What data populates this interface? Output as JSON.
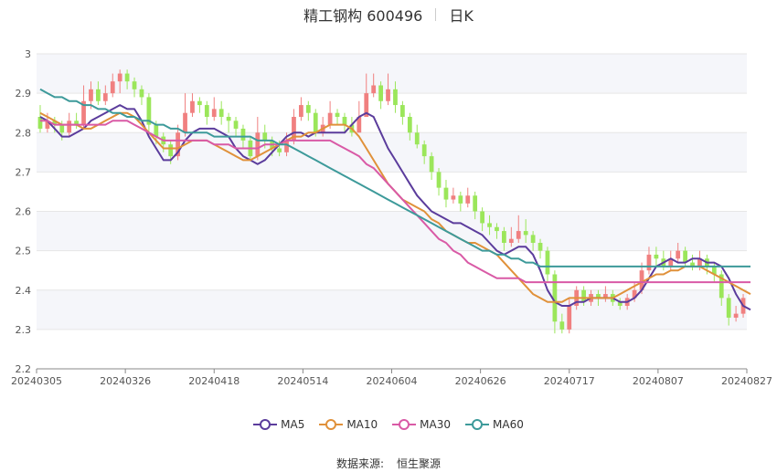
{
  "header": {
    "stock_name": "精工钢构 600496",
    "period": "日K"
  },
  "legend": [
    {
      "name": "MA5",
      "color": "#5b3c9c"
    },
    {
      "name": "MA10",
      "color": "#e0913a"
    },
    {
      "name": "MA30",
      "color": "#d95aa6"
    },
    {
      "name": "MA60",
      "color": "#3d9a9a"
    }
  ],
  "source": {
    "label": "数据来源:",
    "value": "恒生聚源"
  },
  "colors": {
    "up": "#f08080",
    "down": "#9be65a",
    "grid": "#e6e6e6",
    "band": "#f5f6fa"
  },
  "chart_data": {
    "type": "candlestick",
    "ylim": [
      2.2,
      3.0
    ],
    "yticks": [
      2.2,
      2.3,
      2.4,
      2.5,
      2.6,
      2.7,
      2.8,
      2.9,
      3.0
    ],
    "xticks": [
      "20240305",
      "20240326",
      "20240418",
      "20240514",
      "20240604",
      "20240626",
      "20240717",
      "20240807",
      "20240827"
    ],
    "candles": [
      [
        2.84,
        2.81,
        2.87,
        2.8
      ],
      [
        2.81,
        2.83,
        2.85,
        2.8
      ],
      [
        2.83,
        2.82,
        2.84,
        2.8
      ],
      [
        2.82,
        2.8,
        2.83,
        2.78
      ],
      [
        2.8,
        2.83,
        2.85,
        2.79
      ],
      [
        2.83,
        2.82,
        2.85,
        2.81
      ],
      [
        2.82,
        2.88,
        2.92,
        2.81
      ],
      [
        2.88,
        2.91,
        2.93,
        2.86
      ],
      [
        2.91,
        2.88,
        2.93,
        2.87
      ],
      [
        2.88,
        2.9,
        2.92,
        2.87
      ],
      [
        2.9,
        2.93,
        2.95,
        2.89
      ],
      [
        2.93,
        2.95,
        2.96,
        2.9
      ],
      [
        2.95,
        2.93,
        2.96,
        2.91
      ],
      [
        2.93,
        2.91,
        2.94,
        2.89
      ],
      [
        2.91,
        2.89,
        2.92,
        2.87
      ],
      [
        2.89,
        2.82,
        2.9,
        2.8
      ],
      [
        2.82,
        2.79,
        2.83,
        2.77
      ],
      [
        2.79,
        2.77,
        2.8,
        2.75
      ],
      [
        2.77,
        2.74,
        2.78,
        2.72
      ],
      [
        2.74,
        2.8,
        2.82,
        2.73
      ],
      [
        2.8,
        2.85,
        2.9,
        2.79
      ],
      [
        2.85,
        2.88,
        2.9,
        2.84
      ],
      [
        2.88,
        2.87,
        2.89,
        2.85
      ],
      [
        2.87,
        2.84,
        2.88,
        2.82
      ],
      [
        2.84,
        2.86,
        2.89,
        2.83
      ],
      [
        2.86,
        2.84,
        2.88,
        2.82
      ],
      [
        2.84,
        2.83,
        2.85,
        2.8
      ],
      [
        2.83,
        2.81,
        2.84,
        2.79
      ],
      [
        2.81,
        2.78,
        2.82,
        2.76
      ],
      [
        2.78,
        2.74,
        2.79,
        2.73
      ],
      [
        2.74,
        2.8,
        2.84,
        2.73
      ],
      [
        2.8,
        2.78,
        2.82,
        2.76
      ],
      [
        2.78,
        2.76,
        2.79,
        2.74
      ],
      [
        2.76,
        2.75,
        2.78,
        2.74
      ],
      [
        2.75,
        2.78,
        2.8,
        2.74
      ],
      [
        2.78,
        2.84,
        2.86,
        2.77
      ],
      [
        2.84,
        2.87,
        2.89,
        2.83
      ],
      [
        2.87,
        2.85,
        2.88,
        2.83
      ],
      [
        2.85,
        2.8,
        2.86,
        2.79
      ],
      [
        2.8,
        2.82,
        2.84,
        2.79
      ],
      [
        2.82,
        2.85,
        2.88,
        2.81
      ],
      [
        2.85,
        2.84,
        2.86,
        2.82
      ],
      [
        2.84,
        2.82,
        2.85,
        2.8
      ],
      [
        2.82,
        2.8,
        2.84,
        2.79
      ],
      [
        2.8,
        2.84,
        2.88,
        2.8
      ],
      [
        2.84,
        2.9,
        2.95,
        2.84
      ],
      [
        2.9,
        2.92,
        2.95,
        2.89
      ],
      [
        2.92,
        2.88,
        2.93,
        2.86
      ],
      [
        2.88,
        2.91,
        2.95,
        2.87
      ],
      [
        2.91,
        2.87,
        2.93,
        2.85
      ],
      [
        2.87,
        2.84,
        2.88,
        2.82
      ],
      [
        2.84,
        2.8,
        2.85,
        2.78
      ],
      [
        2.8,
        2.77,
        2.82,
        2.76
      ],
      [
        2.77,
        2.74,
        2.78,
        2.72
      ],
      [
        2.74,
        2.7,
        2.75,
        2.68
      ],
      [
        2.7,
        2.66,
        2.71,
        2.64
      ],
      [
        2.66,
        2.63,
        2.68,
        2.61
      ],
      [
        2.63,
        2.64,
        2.66,
        2.62
      ],
      [
        2.64,
        2.62,
        2.65,
        2.6
      ],
      [
        2.62,
        2.64,
        2.66,
        2.61
      ],
      [
        2.64,
        2.6,
        2.65,
        2.58
      ],
      [
        2.6,
        2.57,
        2.61,
        2.55
      ],
      [
        2.57,
        2.56,
        2.59,
        2.54
      ],
      [
        2.56,
        2.55,
        2.57,
        2.53
      ],
      [
        2.55,
        2.52,
        2.56,
        2.5
      ],
      [
        2.52,
        2.53,
        2.56,
        2.51
      ],
      [
        2.53,
        2.55,
        2.59,
        2.52
      ],
      [
        2.55,
        2.54,
        2.58,
        2.52
      ],
      [
        2.54,
        2.52,
        2.55,
        2.5
      ],
      [
        2.52,
        2.5,
        2.53,
        2.48
      ],
      [
        2.5,
        2.44,
        2.51,
        2.42
      ],
      [
        2.44,
        2.32,
        2.45,
        2.29
      ],
      [
        2.32,
        2.3,
        2.34,
        2.29
      ],
      [
        2.3,
        2.36,
        2.38,
        2.29
      ],
      [
        2.36,
        2.4,
        2.41,
        2.35
      ],
      [
        2.4,
        2.37,
        2.41,
        2.36
      ],
      [
        2.37,
        2.39,
        2.4,
        2.36
      ],
      [
        2.39,
        2.38,
        2.4,
        2.36
      ],
      [
        2.38,
        2.39,
        2.41,
        2.37
      ],
      [
        2.39,
        2.37,
        2.4,
        2.36
      ],
      [
        2.37,
        2.36,
        2.38,
        2.35
      ],
      [
        2.36,
        2.38,
        2.39,
        2.35
      ],
      [
        2.38,
        2.4,
        2.42,
        2.37
      ],
      [
        2.4,
        2.45,
        2.47,
        2.39
      ],
      [
        2.45,
        2.49,
        2.51,
        2.44
      ],
      [
        2.49,
        2.48,
        2.51,
        2.46
      ],
      [
        2.48,
        2.46,
        2.5,
        2.45
      ],
      [
        2.46,
        2.48,
        2.5,
        2.45
      ],
      [
        2.48,
        2.5,
        2.52,
        2.47
      ],
      [
        2.5,
        2.47,
        2.51,
        2.46
      ],
      [
        2.47,
        2.46,
        2.49,
        2.45
      ],
      [
        2.46,
        2.48,
        2.5,
        2.45
      ],
      [
        2.48,
        2.46,
        2.49,
        2.44
      ],
      [
        2.46,
        2.44,
        2.47,
        2.42
      ],
      [
        2.44,
        2.38,
        2.45,
        2.36
      ],
      [
        2.38,
        2.33,
        2.39,
        2.31
      ],
      [
        2.33,
        2.34,
        2.36,
        2.32
      ],
      [
        2.34,
        2.38,
        2.39,
        2.33
      ]
    ],
    "ma": {
      "MA5": [
        2.84,
        2.83,
        2.81,
        2.79,
        2.79,
        2.8,
        2.81,
        2.83,
        2.84,
        2.85,
        2.86,
        2.87,
        2.86,
        2.86,
        2.83,
        2.79,
        2.76,
        2.73,
        2.73,
        2.75,
        2.78,
        2.8,
        2.81,
        2.81,
        2.81,
        2.8,
        2.79,
        2.76,
        2.74,
        2.73,
        2.72,
        2.73,
        2.75,
        2.77,
        2.79,
        2.8,
        2.8,
        2.79,
        2.8,
        2.8,
        2.8,
        2.8,
        2.8,
        2.82,
        2.84,
        2.85,
        2.84,
        2.8,
        2.76,
        2.73,
        2.7,
        2.67,
        2.64,
        2.62,
        2.6,
        2.59,
        2.58,
        2.57,
        2.57,
        2.56,
        2.55,
        2.54,
        2.52,
        2.5,
        2.49,
        2.5,
        2.51,
        2.51,
        2.49,
        2.45,
        2.4,
        2.37,
        2.36,
        2.36,
        2.37,
        2.37,
        2.38,
        2.38,
        2.38,
        2.38,
        2.37,
        2.37,
        2.38,
        2.4,
        2.43,
        2.46,
        2.47,
        2.48,
        2.47,
        2.47,
        2.48,
        2.48,
        2.47,
        2.47,
        2.46,
        2.43,
        2.39,
        2.36,
        2.35
      ],
      "MA10": [
        2.85,
        2.84,
        2.83,
        2.82,
        2.82,
        2.82,
        2.81,
        2.81,
        2.82,
        2.83,
        2.84,
        2.85,
        2.85,
        2.84,
        2.82,
        2.8,
        2.78,
        2.76,
        2.76,
        2.76,
        2.77,
        2.78,
        2.78,
        2.78,
        2.77,
        2.76,
        2.75,
        2.74,
        2.73,
        2.73,
        2.74,
        2.75,
        2.76,
        2.77,
        2.78,
        2.79,
        2.79,
        2.8,
        2.8,
        2.81,
        2.82,
        2.82,
        2.82,
        2.81,
        2.79,
        2.76,
        2.73,
        2.7,
        2.67,
        2.65,
        2.63,
        2.62,
        2.61,
        2.6,
        2.58,
        2.57,
        2.55,
        2.54,
        2.53,
        2.52,
        2.52,
        2.51,
        2.5,
        2.49,
        2.47,
        2.45,
        2.43,
        2.41,
        2.39,
        2.38,
        2.37,
        2.37,
        2.37,
        2.38,
        2.38,
        2.38,
        2.38,
        2.38,
        2.38,
        2.38,
        2.39,
        2.4,
        2.41,
        2.42,
        2.43,
        2.44,
        2.44,
        2.45,
        2.45,
        2.46,
        2.46,
        2.46,
        2.45,
        2.44,
        2.43,
        2.42,
        2.41,
        2.4,
        2.39
      ],
      "MA30": [
        2.83,
        2.83,
        2.82,
        2.82,
        2.82,
        2.82,
        2.82,
        2.82,
        2.82,
        2.82,
        2.83,
        2.83,
        2.83,
        2.82,
        2.81,
        2.8,
        2.79,
        2.78,
        2.78,
        2.78,
        2.78,
        2.78,
        2.78,
        2.78,
        2.77,
        2.77,
        2.77,
        2.76,
        2.76,
        2.76,
        2.76,
        2.77,
        2.77,
        2.77,
        2.78,
        2.78,
        2.78,
        2.78,
        2.78,
        2.78,
        2.78,
        2.77,
        2.76,
        2.75,
        2.74,
        2.72,
        2.71,
        2.69,
        2.67,
        2.65,
        2.63,
        2.61,
        2.59,
        2.57,
        2.55,
        2.53,
        2.52,
        2.5,
        2.49,
        2.47,
        2.46,
        2.45,
        2.44,
        2.43,
        2.43,
        2.43,
        2.43,
        2.42,
        2.42,
        2.42,
        2.42,
        2.42,
        2.42,
        2.42,
        2.42,
        2.42,
        2.42,
        2.42,
        2.42,
        2.42,
        2.42,
        2.42,
        2.42,
        2.42,
        2.42,
        2.42,
        2.42,
        2.42,
        2.42,
        2.42,
        2.42,
        2.42,
        2.42,
        2.42,
        2.42,
        2.42,
        2.42,
        2.42,
        2.42
      ],
      "MA60": [
        2.91,
        2.9,
        2.89,
        2.89,
        2.88,
        2.88,
        2.87,
        2.87,
        2.86,
        2.86,
        2.85,
        2.85,
        2.84,
        2.84,
        2.83,
        2.83,
        2.82,
        2.82,
        2.81,
        2.81,
        2.8,
        2.8,
        2.8,
        2.8,
        2.79,
        2.79,
        2.79,
        2.79,
        2.79,
        2.79,
        2.78,
        2.78,
        2.78,
        2.77,
        2.77,
        2.76,
        2.75,
        2.74,
        2.73,
        2.72,
        2.71,
        2.7,
        2.69,
        2.68,
        2.67,
        2.66,
        2.65,
        2.64,
        2.63,
        2.62,
        2.61,
        2.6,
        2.59,
        2.58,
        2.57,
        2.56,
        2.55,
        2.54,
        2.53,
        2.52,
        2.51,
        2.5,
        2.5,
        2.49,
        2.49,
        2.48,
        2.48,
        2.47,
        2.47,
        2.46,
        2.46,
        2.46,
        2.46,
        2.46,
        2.46,
        2.46,
        2.46,
        2.46,
        2.46,
        2.46,
        2.46,
        2.46,
        2.46,
        2.46,
        2.46,
        2.46,
        2.46,
        2.46,
        2.46,
        2.46,
        2.46,
        2.46,
        2.46,
        2.46,
        2.46,
        2.46,
        2.46,
        2.46,
        2.46
      ]
    }
  }
}
